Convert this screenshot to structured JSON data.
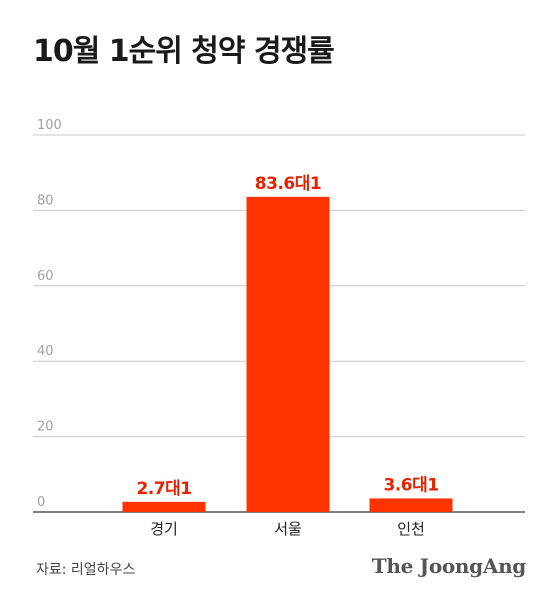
{
  "title": "10월 1순위 청약 경쟁률",
  "source": "자료: 리얼하우스",
  "brand": "The JoongAng",
  "colors": {
    "bar": "#ff3300",
    "label": "#e62200",
    "grid": "#c8c8c8",
    "tick": "#a0a0a0",
    "axis": "#333333"
  },
  "chart_data": {
    "type": "bar",
    "categories": [
      "경기",
      "서울",
      "인천"
    ],
    "values": [
      2.7,
      83.6,
      3.6
    ],
    "data_labels": [
      "2.7대1",
      "83.6대1",
      "3.6대1"
    ],
    "ylim": [
      0,
      100
    ],
    "yticks": [
      0,
      20,
      40,
      60,
      80,
      100
    ],
    "grid": true,
    "title": "10월 1순위 청약 경쟁률",
    "xlabel": "",
    "ylabel": ""
  }
}
